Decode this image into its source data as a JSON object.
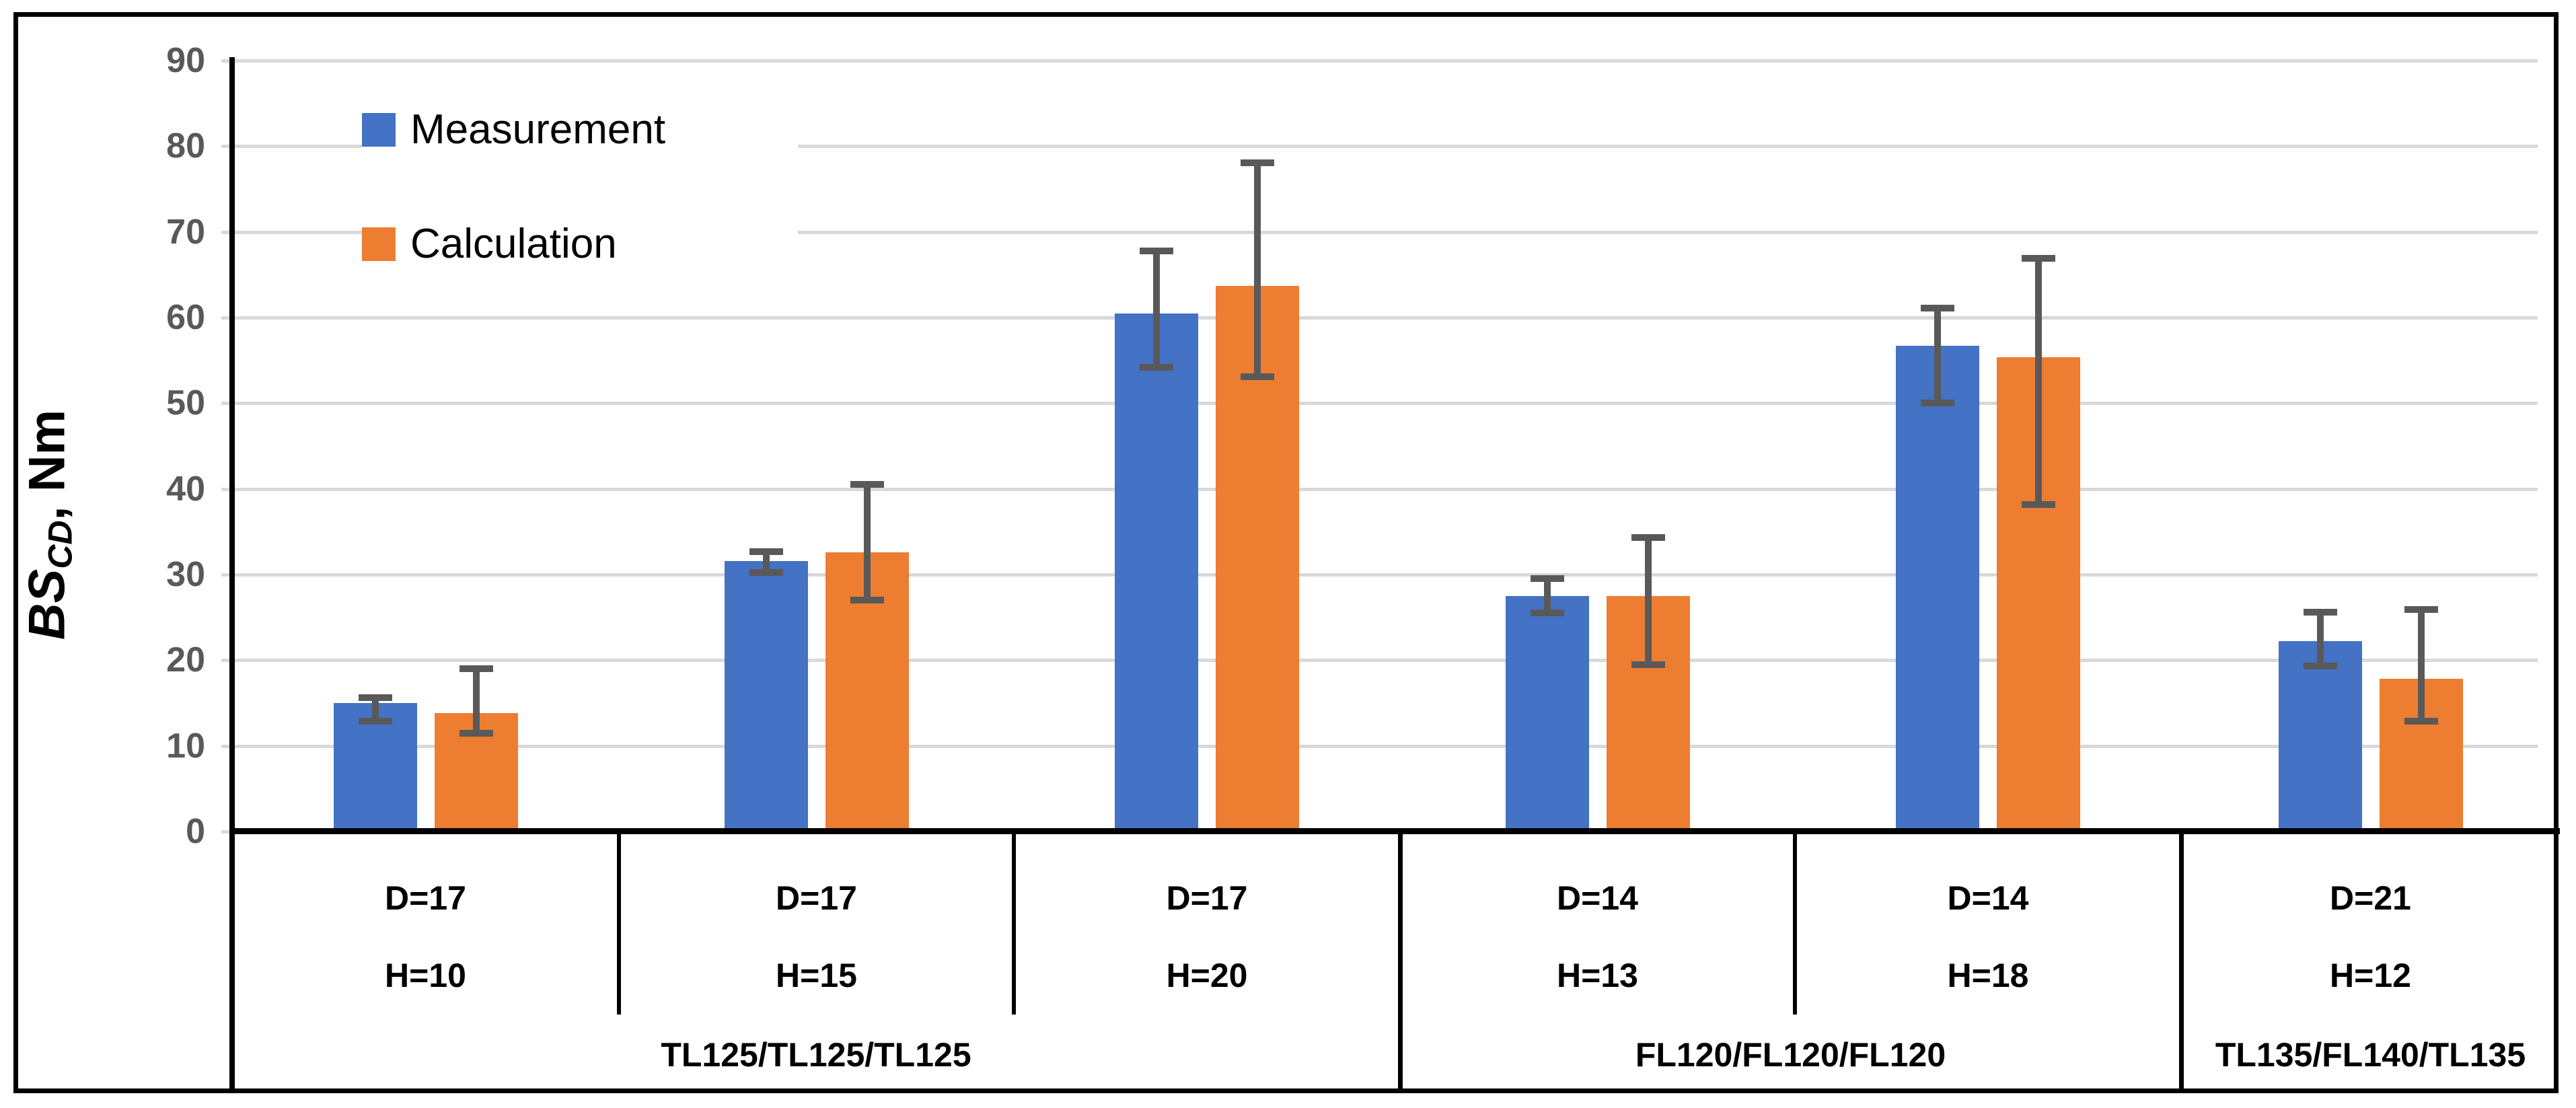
{
  "chart_data": {
    "type": "bar",
    "title": "",
    "ylabel": {
      "main": "BS",
      "sub": "CD",
      "rest": ", Nm"
    },
    "ylim": [
      0,
      90
    ],
    "ytick_step": 10,
    "yticks": [
      0,
      10,
      20,
      30,
      40,
      50,
      60,
      70,
      80,
      90
    ],
    "grid": true,
    "legend_position": "top-left-inside",
    "error_bar_color": "#595959",
    "categories": [
      {
        "line1": "D=17",
        "line2": "H=10"
      },
      {
        "line1": "D=17",
        "line2": "H=15"
      },
      {
        "line1": "D=17",
        "line2": "H=20"
      },
      {
        "line1": "D=14",
        "line2": "H=13"
      },
      {
        "line1": "D=14",
        "line2": "H=18"
      },
      {
        "line1": "D=21",
        "line2": "H=12"
      }
    ],
    "group_labels": [
      {
        "label": "TL125/TL125/TL125",
        "start": 0,
        "end": 2
      },
      {
        "label": "FL120/FL120/FL120",
        "start": 3,
        "end": 4
      },
      {
        "label": "TL135/FL140/TL135",
        "start": 5,
        "end": 5
      }
    ],
    "series": [
      {
        "name": "Measurement",
        "color": "#4472C4",
        "values": [
          15.0,
          31.6,
          60.5,
          27.5,
          56.7,
          22.2
        ],
        "err_low": [
          12.9,
          30.2,
          54.2,
          25.5,
          50.0,
          19.3
        ],
        "err_high": [
          15.6,
          32.7,
          67.8,
          29.5,
          61.1,
          25.6
        ]
      },
      {
        "name": "Calculation",
        "color": "#ED7D31",
        "values": [
          13.8,
          32.6,
          63.7,
          27.5,
          55.4,
          17.8
        ],
        "err_low": [
          11.5,
          27.0,
          53.1,
          19.5,
          38.2,
          12.9
        ],
        "err_high": [
          19.0,
          40.5,
          78.1,
          34.3,
          66.9,
          25.9
        ]
      }
    ]
  }
}
